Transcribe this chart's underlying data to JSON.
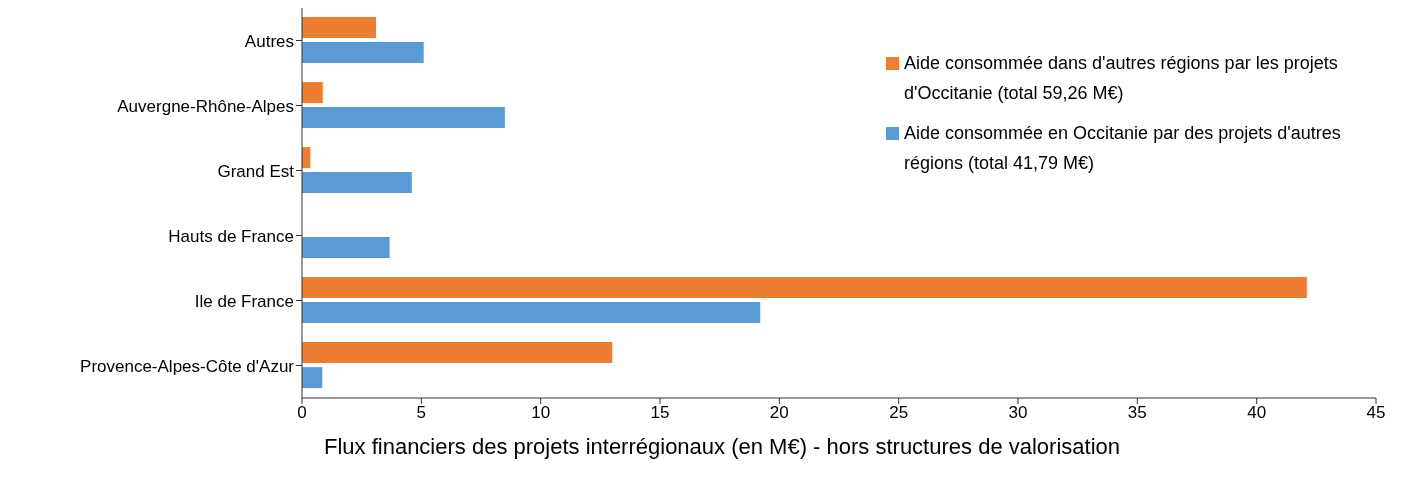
{
  "chart_data": {
    "type": "bar",
    "orientation": "horizontal",
    "xlabel": "Flux financiers des projets interrégionaux (en M€) - hors structures de valorisation",
    "categories": [
      "Autres",
      "Auvergne-Rhône-Alpes",
      "Grand Est",
      "Hauts de France",
      "Ile de France",
      "Provence-Alpes-Côte d'Azur"
    ],
    "series": [
      {
        "name": "Aide consommée dans d'autres régions par les projets d'Occitanie (total 59,26 M€)",
        "color": "#ed7d31",
        "values": [
          3.1,
          0.87,
          0.35,
          null,
          42.1,
          13.0
        ]
      },
      {
        "name": "Aide consommée en Occitanie par des projets d'autres régions (total 41,79 M€)",
        "color": "#5b9bd5",
        "values": [
          5.1,
          8.5,
          4.6,
          3.67,
          19.2,
          0.85
        ]
      }
    ],
    "xlim": [
      0,
      45
    ],
    "xticks": [
      0,
      5,
      10,
      15,
      20,
      25,
      30,
      35,
      40,
      45
    ],
    "grid": false,
    "legend": "top right"
  }
}
